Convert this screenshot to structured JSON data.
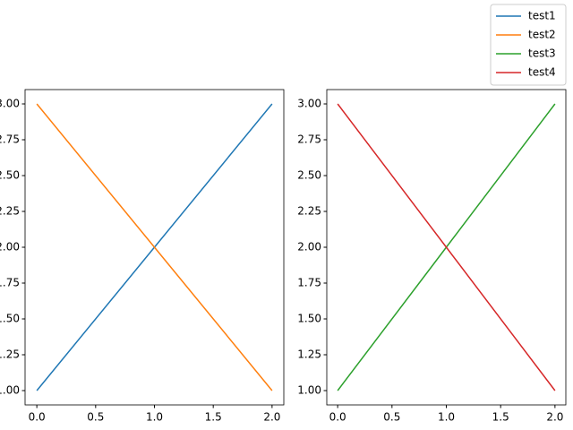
{
  "chart_data": [
    {
      "type": "line",
      "x": [
        0,
        1,
        2
      ],
      "series": [
        {
          "name": "test1",
          "color": "#1f77b4",
          "values": [
            1,
            2,
            3
          ]
        },
        {
          "name": "test2",
          "color": "#ff7f0e",
          "values": [
            3,
            2,
            1
          ]
        }
      ],
      "xlim": [
        -0.1,
        2.1
      ],
      "ylim": [
        0.9,
        3.1
      ],
      "xticks": [
        {
          "value": 0,
          "label": "0.0"
        },
        0.5,
        {
          "value": 1,
          "label": "1.0"
        },
        1.5,
        {
          "value": 2,
          "label": "2.0"
        }
      ],
      "yticks": [
        {
          "value": 1,
          "label": "1.00"
        },
        1.25,
        {
          "value": 1.5,
          "label": "1.50"
        },
        1.75,
        {
          "value": 2,
          "label": "2.00"
        },
        2.25,
        {
          "value": 2.5,
          "label": "2.50"
        },
        2.75,
        {
          "value": 3,
          "label": "3.00"
        }
      ]
    },
    {
      "type": "line",
      "x": [
        0,
        1,
        2
      ],
      "series": [
        {
          "name": "test3",
          "color": "#2ca02c",
          "values": [
            1,
            2,
            3
          ]
        },
        {
          "name": "test4",
          "color": "#d62728",
          "values": [
            3,
            2,
            1
          ]
        }
      ],
      "xlim": [
        -0.1,
        2.1
      ],
      "ylim": [
        0.9,
        3.1
      ],
      "xticks": [
        {
          "value": 0,
          "label": "0.0"
        },
        0.5,
        {
          "value": 1,
          "label": "1.0"
        },
        1.5,
        {
          "value": 2,
          "label": "2.0"
        }
      ],
      "yticks": [
        {
          "value": 1,
          "label": "1.00"
        },
        1.25,
        {
          "value": 1.5,
          "label": "1.50"
        },
        1.75,
        {
          "value": 2,
          "label": "2.00"
        },
        2.25,
        {
          "value": 2.5,
          "label": "2.50"
        },
        2.75,
        {
          "value": 3,
          "label": "3.00"
        }
      ]
    }
  ]
}
